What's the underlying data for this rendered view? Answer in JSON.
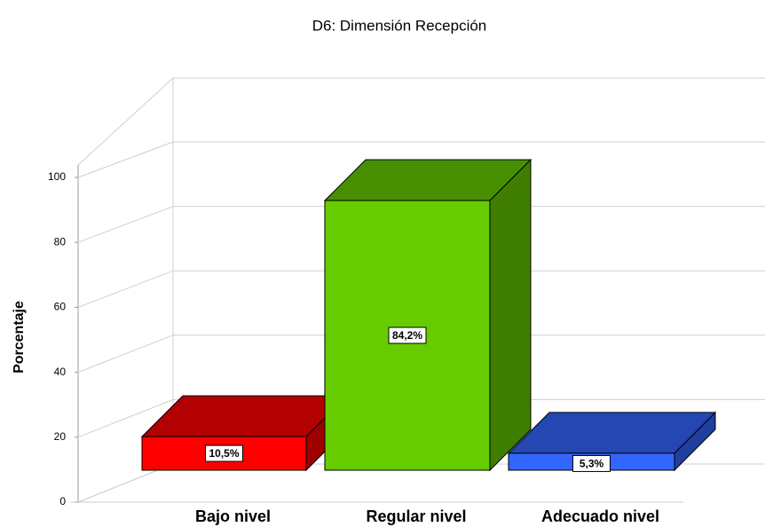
{
  "chart_data": {
    "type": "bar3d",
    "title": "D6: Dimensión Recepción",
    "ylabel": "Porcentaje",
    "categories": [
      "Bajo nivel",
      "Regular nivel",
      "Adecuado nivel"
    ],
    "values": [
      10.5,
      84.2,
      5.3
    ],
    "value_labels": [
      "10,5%",
      "84,2%",
      "5,3%"
    ],
    "colors": [
      "#ff0000",
      "#66cc00",
      "#3366ff"
    ],
    "ylim": [
      0,
      100
    ],
    "yticks": [
      0,
      20,
      40,
      60,
      80,
      100
    ],
    "grid": true
  }
}
